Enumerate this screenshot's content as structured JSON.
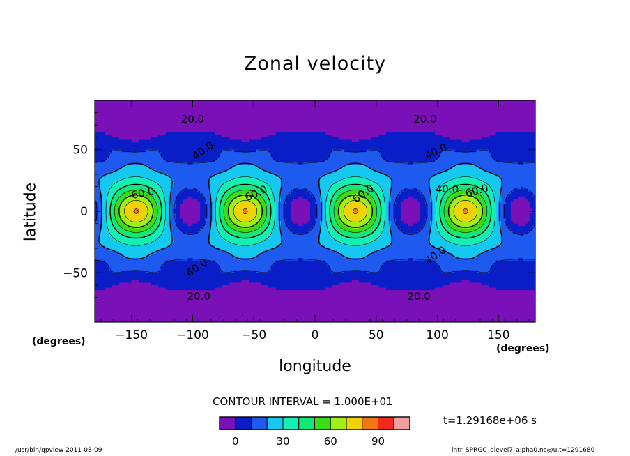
{
  "title": "Zonal velocity",
  "chart_data": {
    "type": "contour",
    "title": "Zonal velocity",
    "xlabel": "longitude",
    "ylabel": "latitude",
    "x_unit_label": "(degrees)",
    "y_unit_label": "(degrees)",
    "xlim": [
      -180,
      180
    ],
    "ylim": [
      -90,
      90
    ],
    "x_ticks": [
      "−150",
      "−100",
      "−50",
      "0",
      "50",
      "100",
      "150"
    ],
    "x_tick_values": [
      -150,
      -100,
      -50,
      0,
      50,
      100,
      150
    ],
    "y_ticks": [
      "50",
      "0",
      "−50"
    ],
    "y_tick_values": [
      50,
      0,
      -50
    ],
    "contour_interval": "CONTOUR INTERVAL = 1.000E+01",
    "contour_labels": [
      "20.0",
      "40.0",
      "60.0"
    ],
    "jet_maxima_lon": [
      -146,
      -57,
      33,
      123
    ],
    "equatorial_minima_lon": [
      -102,
      -12,
      78,
      168
    ],
    "field_max_approx": 90,
    "field_min_approx": 0,
    "colorbar": {
      "levels": [
        -10,
        0,
        10,
        20,
        30,
        40,
        50,
        60,
        70,
        80,
        90,
        100
      ],
      "tick_labels": [
        "0",
        "30",
        "60",
        "90"
      ],
      "tick_values": [
        0,
        30,
        60,
        90
      ],
      "colors": [
        "#7a10b8",
        "#0a1ec8",
        "#1e5af0",
        "#14c8f0",
        "#14f0b4",
        "#14e678",
        "#3cdc14",
        "#a0f014",
        "#f0d20a",
        "#f07814",
        "#f0281e",
        "#f0a0a0"
      ]
    },
    "time_label": "t=1.29168e+06  s"
  },
  "footer": {
    "left": "/usr/bin/gpview   2011-08-09",
    "right": "intr_SPRGC_glevel7_alpha0.nc@u,t=1291680"
  }
}
